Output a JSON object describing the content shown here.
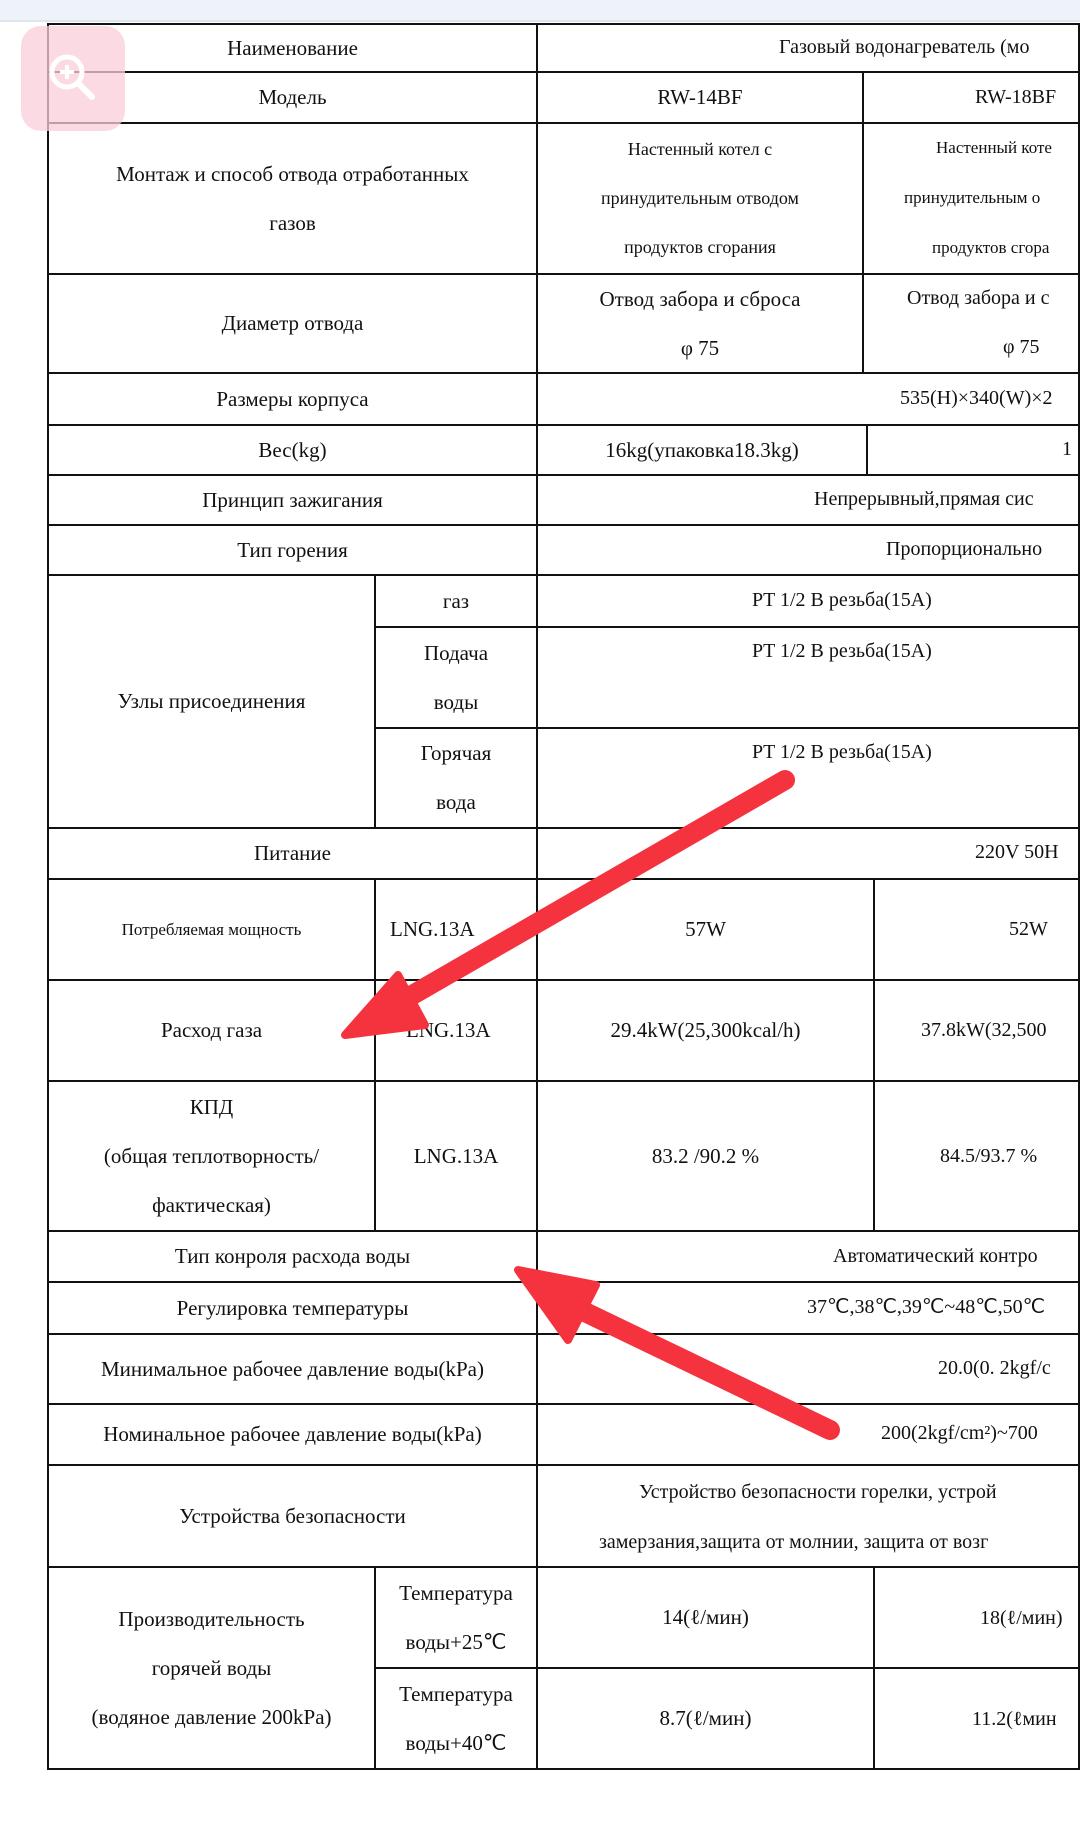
{
  "colors": {
    "arrow": "#f5333f",
    "grid": "#111111",
    "zoom_button": "#facdda"
  },
  "icons": {
    "zoom": "zoom-in-icon",
    "arrow": "red-arrow-annotation"
  },
  "rows": {
    "name": {
      "label": "Наименование",
      "value": "Газовый водонагреватель (мо"
    },
    "model": {
      "label": "Модель",
      "v1": "RW-14BF",
      "v2": "RW-18BF"
    },
    "mount": {
      "label": [
        "Монтаж и способ отвода отработанных",
        "газов"
      ],
      "v1": [
        "Настенный котел с",
        "принудительным отводом",
        "продуктов сгорания"
      ],
      "v2": [
        "Настенный коте",
        "принудительным о",
        "продуктов сгора"
      ]
    },
    "diam": {
      "label": "Диаметр отвода",
      "v1": [
        "Отвод забора и сброса",
        "φ 75"
      ],
      "v2": [
        "Отвод забора и с",
        "φ 75"
      ]
    },
    "size": {
      "label": "Размеры корпуса",
      "value": "535(H)×340(W)×2"
    },
    "weight": {
      "label": "Вес(kg)",
      "v1": "16kg(упаковка18.3kg)",
      "v2": "1"
    },
    "ignition": {
      "label": "Принцип зажигания",
      "value": "Непрерывный,прямая сис"
    },
    "burn": {
      "label": "Тип горения",
      "value": "Пропорционально"
    },
    "conn": {
      "label": "Узлы присоединения",
      "gas": "газ",
      "gas_v": "PT 1/2 B резьба(15A)",
      "water_in": [
        "Подача",
        "воды"
      ],
      "water_in_v": "PT 1/2 B резьба(15A)",
      "hot": [
        "Горячая",
        "вода"
      ],
      "hot_v": "PT 1/2 B резьба(15A)"
    },
    "power": {
      "label": "Питание",
      "value": "220V 50H"
    },
    "consumption": {
      "label": "Потребляемая мощность",
      "gas": "LNG.13A",
      "v1": "57W",
      "v2": "52W"
    },
    "gasflow": {
      "label": "Расход газа",
      "gas": "LNG.13A",
      "v1": "29.4kW(25,300kcal/h)",
      "v2": "37.8kW(32,500"
    },
    "eff": {
      "label": [
        "КПД",
        "(общая теплотворность/",
        "фактическая)"
      ],
      "gas": "LNG.13A",
      "v1": "83.2 /90.2 %",
      "v2": "84.5/93.7 %"
    },
    "flowctl": {
      "label": "Тип конроля расхода воды",
      "value": "Автоматический контро"
    },
    "temp": {
      "label": "Регулировка температуры",
      "value": "37℃,38℃,39℃~48℃,50℃"
    },
    "minp": {
      "label": "Минимальное рабочее давление воды(kPa)",
      "value": "20.0(0. 2kgf/c"
    },
    "nomp": {
      "label": "Номинальное рабочее давление воды(kPa)",
      "value": "200(2kgf/cm²)~700"
    },
    "safety": {
      "label": "Устройства безопасности",
      "line1": "Устройство безопасности горелки, устрой",
      "line2": "замерзания,защита от молнии, защита от возг"
    },
    "perf": {
      "label": [
        "Производительность",
        "горячей воды",
        "(водяное давление 200kPa)"
      ],
      "t25": [
        "Температура",
        "воды+25℃"
      ],
      "t25_v1": "14(ℓ/мин)",
      "t25_v2": "18(ℓ/мин)",
      "t40": [
        "Температура",
        "воды+40℃"
      ],
      "t40_v1": "8.7(ℓ/мин)",
      "t40_v2": "11.2(ℓмин"
    }
  }
}
